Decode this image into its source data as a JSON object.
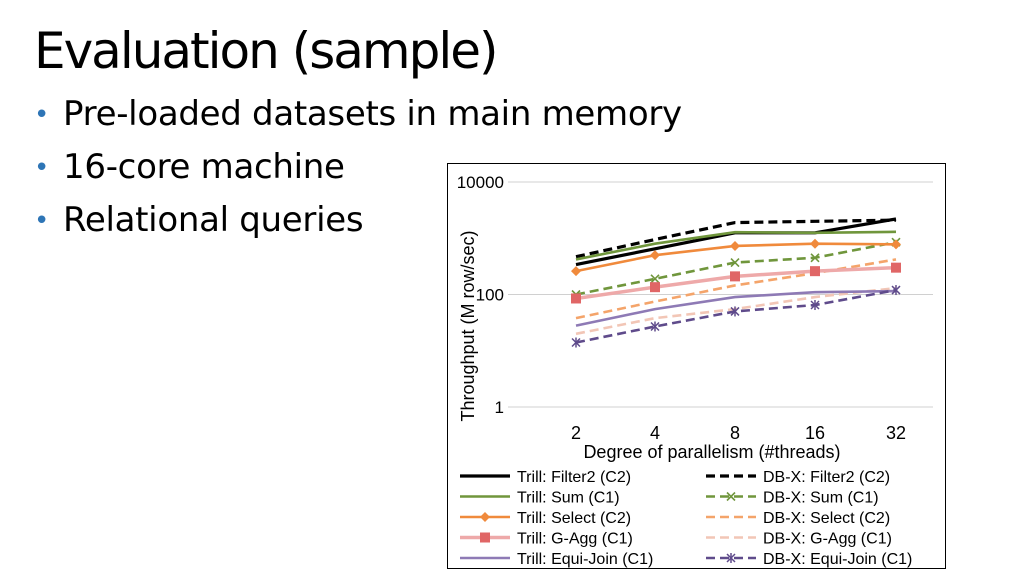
{
  "slide": {
    "title": "Evaluation (sample)",
    "bullets": [
      "Pre-loaded datasets in main memory",
      "16-core machine",
      "Relational queries"
    ],
    "bullet_color": "#2e75b6"
  },
  "chart_data": {
    "type": "line",
    "title": "",
    "xlabel": "Degree of parallelism (#threads)",
    "ylabel": "Throughput (M row/sec)",
    "y_scale": "log",
    "ylim": [
      1,
      10000
    ],
    "yticks": [
      "1",
      "100",
      "10000"
    ],
    "ytick_values": [
      1,
      100,
      10000
    ],
    "categories": [
      "2",
      "4",
      "8",
      "16",
      "32"
    ],
    "grid": true,
    "legend_position": "bottom",
    "series": [
      {
        "name": "Trill: Filter2 (C2)",
        "color": "#000000",
        "dash": "solid",
        "marker": "none",
        "values": [
          340,
          650,
          1250,
          1250,
          2200
        ]
      },
      {
        "name": "DB-X: Filter2 (C2)",
        "color": "#000000",
        "dash": "dashed",
        "marker": "none",
        "values": [
          470,
          950,
          1900,
          2000,
          2100
        ]
      },
      {
        "name": "Trill: Sum (C1)",
        "color": "#70963c",
        "dash": "solid",
        "marker": "none",
        "values": [
          420,
          800,
          1280,
          1250,
          1300
        ]
      },
      {
        "name": "DB-X: Sum (C1)",
        "color": "#70963c",
        "dash": "dashed",
        "marker": "x",
        "values": [
          100,
          190,
          370,
          450,
          850
        ]
      },
      {
        "name": "Trill: Select (C2)",
        "color": "#f08a3c",
        "dash": "solid",
        "marker": "diamond",
        "values": [
          260,
          500,
          730,
          800,
          780
        ]
      },
      {
        "name": "DB-X: Select (C2)",
        "color": "#f4a46a",
        "dash": "dashed",
        "marker": "none",
        "values": [
          38,
          75,
          145,
          240,
          420
        ]
      },
      {
        "name": "Trill: G-Agg (C1)",
        "color": "#eea9a9",
        "dash": "solid",
        "marker": "square",
        "values": [
          85,
          135,
          210,
          260,
          300
        ]
      },
      {
        "name": "DB-X: G-Agg (C1)",
        "color": "#f2c6b6",
        "dash": "dashed",
        "marker": "none",
        "values": [
          20,
          38,
          55,
          90,
          130
        ]
      },
      {
        "name": "Trill: Equi-Join (C1)",
        "color": "#8e7ab5",
        "dash": "solid",
        "marker": "none",
        "values": [
          28,
          55,
          90,
          110,
          115
        ]
      },
      {
        "name": "DB-X: Equi-Join (C1)",
        "color": "#5f4b8b",
        "dash": "dashed",
        "marker": "star",
        "values": [
          14,
          27,
          50,
          65,
          120
        ]
      }
    ]
  }
}
